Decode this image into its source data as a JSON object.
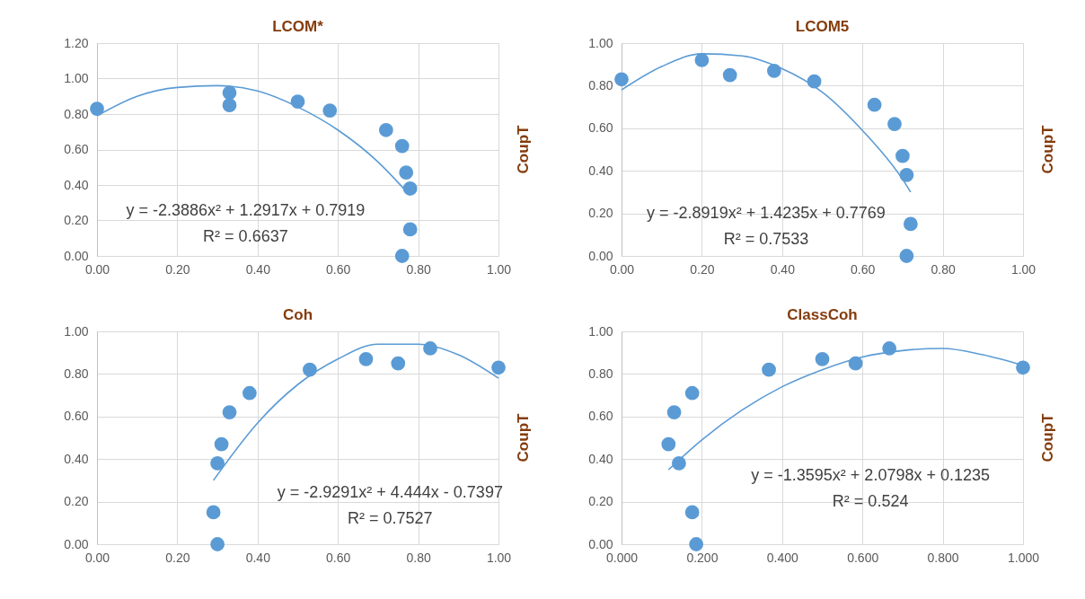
{
  "chart_data": [
    {
      "type": "scatter",
      "title": "LCOM*",
      "ylabel": "CoupT",
      "marker": "circle",
      "grid": true,
      "xlim": [
        0,
        1
      ],
      "xticks": [
        {
          "value": 0,
          "label": "0.00"
        },
        {
          "value": 0.2,
          "label": "0.20"
        },
        {
          "value": 0.4,
          "label": "0.40"
        },
        {
          "value": 0.6,
          "label": "0.60"
        },
        {
          "value": 0.8,
          "label": "0.80"
        },
        {
          "value": 1,
          "label": "1.00"
        }
      ],
      "ylim": [
        0,
        1.2
      ],
      "yticks": [
        {
          "value": 0,
          "label": "0.00"
        },
        {
          "value": 0.2,
          "label": "0.20"
        },
        {
          "value": 0.4,
          "label": "0.40"
        },
        {
          "value": 0.6,
          "label": "0.60"
        },
        {
          "value": 0.8,
          "label": "0.80"
        },
        {
          "value": 1,
          "label": "1.00"
        },
        {
          "value": 1.2,
          "label": "1.20"
        }
      ],
      "series": [
        {
          "color": "#5b9bd5",
          "x": [
            0,
            0.33,
            0.33,
            0.5,
            0.58,
            0.72,
            0.76,
            0.77,
            0.78,
            0.78,
            0.76
          ],
          "values": [
            0.83,
            0.92,
            0.85,
            0.87,
            0.82,
            0.71,
            0.62,
            0.47,
            0.38,
            0.15,
            0
          ]
        },
        {
          "type": "line",
          "marker": "none",
          "color": "#5b9bd5",
          "x": [
            0,
            0.1,
            0.2,
            0.3,
            0.4,
            0.5,
            0.6,
            0.7,
            0.78
          ],
          "values": [
            0.79,
            0.9,
            0.95,
            0.96,
            0.93,
            0.84,
            0.71,
            0.53,
            0.34
          ]
        }
      ],
      "annotations": [
        "y = -2.3886x² + 1.2917x + 0.7919",
        "R² = 0.6637"
      ]
    },
    {
      "type": "scatter",
      "title": "LCOM5",
      "ylabel": "CoupT",
      "marker": "circle",
      "grid": true,
      "xlim": [
        0,
        1
      ],
      "xticks": [
        {
          "value": 0,
          "label": "0.00"
        },
        {
          "value": 0.2,
          "label": "0.20"
        },
        {
          "value": 0.4,
          "label": "0.40"
        },
        {
          "value": 0.6,
          "label": "0.60"
        },
        {
          "value": 0.8,
          "label": "0.80"
        },
        {
          "value": 1,
          "label": "1.00"
        }
      ],
      "ylim": [
        0,
        1
      ],
      "yticks": [
        {
          "value": 0,
          "label": "0.00"
        },
        {
          "value": 0.2,
          "label": "0.20"
        },
        {
          "value": 0.4,
          "label": "0.40"
        },
        {
          "value": 0.6,
          "label": "0.60"
        },
        {
          "value": 0.8,
          "label": "0.80"
        },
        {
          "value": 1,
          "label": "1.00"
        }
      ],
      "series": [
        {
          "color": "#5b9bd5",
          "x": [
            0,
            0.2,
            0.27,
            0.38,
            0.48,
            0.63,
            0.68,
            0.7,
            0.71,
            0.72,
            0.71
          ],
          "values": [
            0.83,
            0.92,
            0.85,
            0.87,
            0.82,
            0.71,
            0.62,
            0.47,
            0.38,
            0.15,
            0
          ]
        },
        {
          "type": "line",
          "marker": "none",
          "color": "#5b9bd5",
          "x": [
            0,
            0.1,
            0.2,
            0.3,
            0.4,
            0.5,
            0.6,
            0.7,
            0.72
          ],
          "values": [
            0.78,
            0.89,
            0.95,
            0.94,
            0.88,
            0.77,
            0.59,
            0.36,
            0.3
          ]
        }
      ],
      "annotations": [
        "y = -2.8919x² + 1.4235x + 0.7769",
        "R² = 0.7533"
      ]
    },
    {
      "type": "scatter",
      "title": "Coh",
      "ylabel": "CoupT",
      "marker": "circle",
      "grid": true,
      "xlim": [
        0,
        1
      ],
      "xticks": [
        {
          "value": 0,
          "label": "0.00"
        },
        {
          "value": 0.2,
          "label": "0.20"
        },
        {
          "value": 0.4,
          "label": "0.40"
        },
        {
          "value": 0.6,
          "label": "0.60"
        },
        {
          "value": 0.8,
          "label": "0.80"
        },
        {
          "value": 1,
          "label": "1.00"
        }
      ],
      "ylim": [
        0,
        1
      ],
      "yticks": [
        {
          "value": 0,
          "label": "0.00"
        },
        {
          "value": 0.2,
          "label": "0.20"
        },
        {
          "value": 0.4,
          "label": "0.40"
        },
        {
          "value": 0.6,
          "label": "0.60"
        },
        {
          "value": 0.8,
          "label": "0.80"
        },
        {
          "value": 1,
          "label": "1.00"
        }
      ],
      "series": [
        {
          "color": "#5b9bd5",
          "x": [
            0.29,
            0.3,
            0.3,
            0.31,
            0.33,
            0.38,
            0.53,
            0.67,
            0.75,
            0.83,
            1
          ],
          "values": [
            0.15,
            0,
            0.38,
            0.47,
            0.62,
            0.71,
            0.82,
            0.87,
            0.85,
            0.92,
            0.83
          ]
        },
        {
          "type": "line",
          "marker": "none",
          "color": "#5b9bd5",
          "x": [
            0.29,
            0.4,
            0.5,
            0.6,
            0.7,
            0.8,
            0.9,
            1
          ],
          "values": [
            0.3,
            0.57,
            0.75,
            0.87,
            0.94,
            0.94,
            0.89,
            0.78
          ]
        }
      ],
      "annotations": [
        "y = -2.9291x² + 4.444x - 0.7397",
        "R² = 0.7527"
      ]
    },
    {
      "type": "scatter",
      "title": "ClassCoh",
      "ylabel": "CoupT",
      "marker": "circle",
      "grid": true,
      "xlim": [
        0,
        1
      ],
      "xticks": [
        {
          "value": 0,
          "label": "0.000"
        },
        {
          "value": 0.2,
          "label": "0.200"
        },
        {
          "value": 0.4,
          "label": "0.400"
        },
        {
          "value": 0.6,
          "label": "0.600"
        },
        {
          "value": 0.8,
          "label": "0.800"
        },
        {
          "value": 1,
          "label": "1.000"
        }
      ],
      "ylim": [
        0,
        1
      ],
      "yticks": [
        {
          "value": 0,
          "label": "0.00"
        },
        {
          "value": 0.2,
          "label": "0.20"
        },
        {
          "value": 0.4,
          "label": "0.40"
        },
        {
          "value": 0.6,
          "label": "0.60"
        },
        {
          "value": 0.8,
          "label": "0.80"
        },
        {
          "value": 1,
          "label": "1.00"
        }
      ],
      "series": [
        {
          "color": "#5b9bd5",
          "x": [
            0.117,
            0.131,
            0.143,
            0.176,
            0.176,
            0.186,
            0.367,
            0.5,
            0.583,
            0.667,
            1
          ],
          "values": [
            0.47,
            0.62,
            0.38,
            0.71,
            0.15,
            0,
            0.82,
            0.87,
            0.85,
            0.92,
            0.83
          ]
        },
        {
          "type": "line",
          "marker": "none",
          "color": "#5b9bd5",
          "x": [
            0.117,
            0.2,
            0.3,
            0.4,
            0.5,
            0.6,
            0.7,
            0.8,
            0.9,
            1
          ],
          "values": [
            0.35,
            0.49,
            0.63,
            0.74,
            0.82,
            0.88,
            0.91,
            0.92,
            0.89,
            0.84
          ]
        }
      ],
      "annotations": [
        "y = -1.3595x² + 2.0798x + 0.1235",
        "R² = 0.524"
      ]
    }
  ]
}
